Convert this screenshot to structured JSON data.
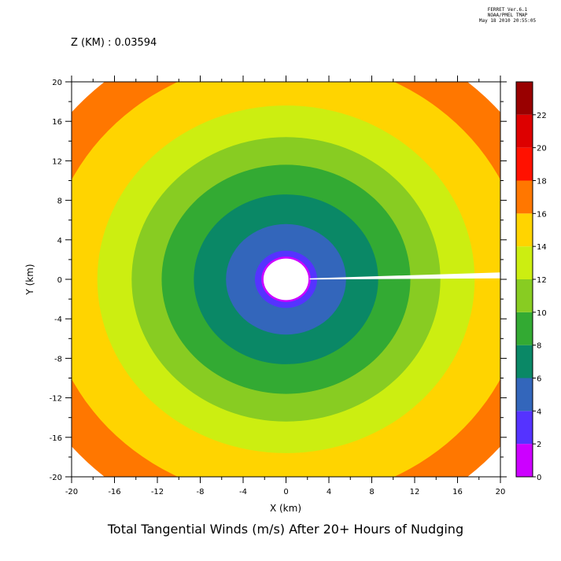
{
  "header": {
    "line1": "FERRET  Ver.6.1",
    "line2": "NOAA/PMEL TMAP",
    "line3": "May 18 2010 20:55:05"
  },
  "z_label": "Z (KM) : 0.03594",
  "chart_data": {
    "type": "heatmap",
    "subtype": "filled-contour",
    "title": "Total Tangential Winds (m/s) After 20+ Hours of Nudging",
    "xlabel": "X (km)",
    "ylabel": "Y (km)",
    "xlim": [
      -20,
      20
    ],
    "ylim": [
      -20,
      20
    ],
    "x_ticks": [
      -20,
      -16,
      -12,
      -8,
      -4,
      0,
      4,
      8,
      12,
      16,
      20
    ],
    "y_ticks": [
      -20,
      -16,
      -12,
      -8,
      -4,
      0,
      4,
      8,
      12,
      16,
      20
    ],
    "colorbar": {
      "levels": [
        0,
        2,
        4,
        6,
        8,
        10,
        12,
        14,
        16,
        18,
        20,
        22
      ],
      "colors": [
        "#cc00ff",
        "#5533ff",
        "#3366bb",
        "#0a8866",
        "#33aa33",
        "#88cc22",
        "#ccee11",
        "#ffd400",
        "#ff7700",
        "#ff1100",
        "#dd0000",
        "#990000"
      ]
    },
    "contour_radii_km": [
      {
        "level": 0,
        "radius": 2.3
      },
      {
        "level": 2,
        "radius": 2.9
      },
      {
        "level": 4,
        "radius": 5.6
      },
      {
        "level": 6,
        "radius": 8.6
      },
      {
        "level": 8,
        "radius": 11.6
      },
      {
        "level": 10,
        "radius": 14.4
      },
      {
        "level": 12,
        "radius": 17.6
      },
      {
        "level": 14,
        "radius": 22.4
      },
      {
        "level": 16,
        "radius": 26.2
      }
    ],
    "empty_core_radius_km": 2.1,
    "grid": false
  }
}
